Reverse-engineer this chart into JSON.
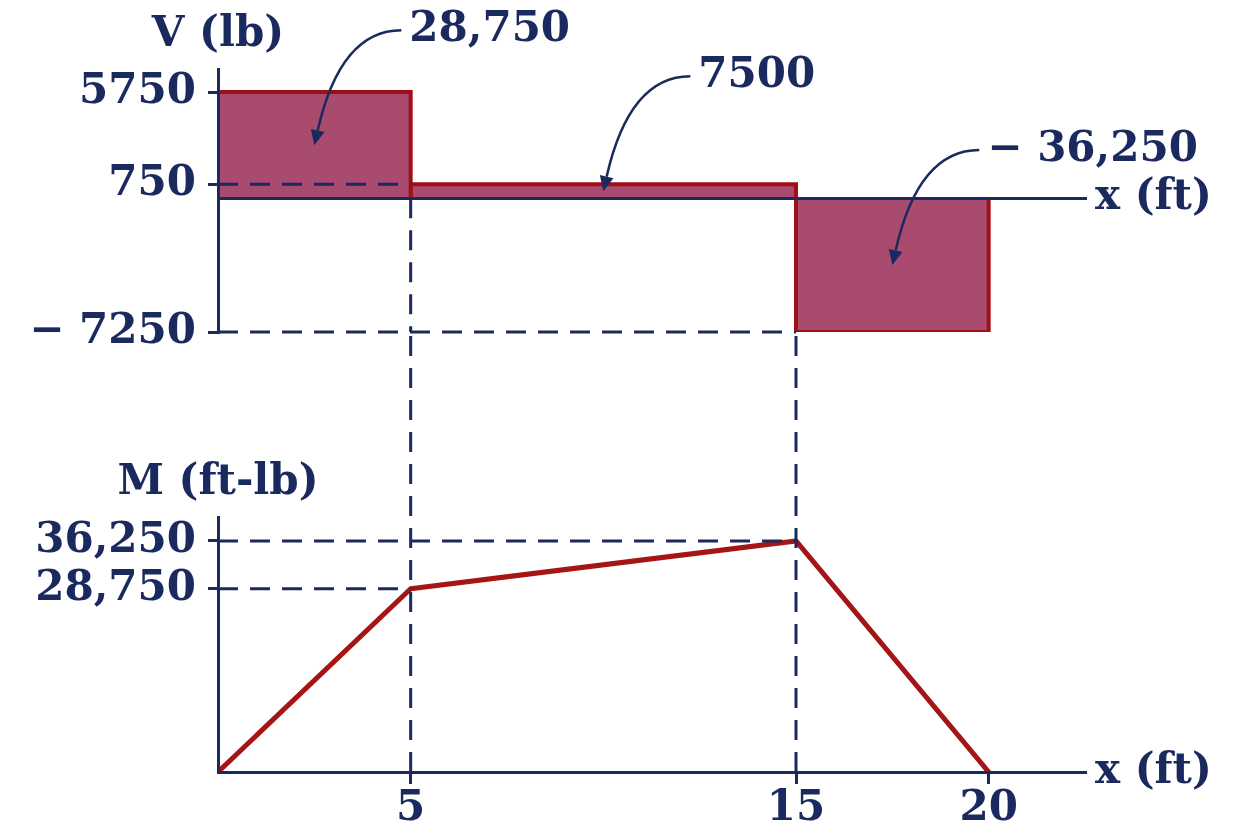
{
  "chart_data": [
    {
      "type": "histogram",
      "xlabel": "x (ft)",
      "ylabel": "V (lb)",
      "bins": [
        0,
        5,
        15,
        20
      ],
      "values": [
        5750,
        750,
        -7250
      ],
      "color": "#a94a6f",
      "xlim": [
        0,
        22.5
      ],
      "ylim": [
        -7250,
        7000
      ],
      "yticks": [
        {
          "value": -7250,
          "label": "− 7250"
        },
        750,
        5750
      ],
      "tick_labels": "y",
      "ref_lines": [
        {
          "axis": "y",
          "value": 750,
          "color": "#1b2a5e",
          "line_style": "dashed"
        },
        {
          "axis": "y",
          "value": -7250,
          "color": "#1b2a5e",
          "line_style": "dashed"
        },
        {
          "axis": "x",
          "value": 5,
          "color": "#1b2a5e",
          "line_style": "dashed"
        }
      ],
      "annotations": [
        "28,750",
        "7500",
        "− 36,250"
      ]
    },
    {
      "type": "line",
      "xlabel": "x (ft)",
      "ylabel": "M (ft-lb)",
      "x": [
        0,
        5,
        15,
        20
      ],
      "values": [
        0,
        28750,
        36250,
        0
      ],
      "color": "#a51515",
      "xlim": [
        0,
        22.5
      ],
      "xticks": [
        5,
        15,
        20
      ],
      "ylim": [
        0,
        40000
      ],
      "yticks": [
        {
          "value": 28750,
          "label": "28,750"
        },
        {
          "value": 36250,
          "label": "36,250"
        }
      ],
      "ref_lines": [
        {
          "axis": "y",
          "value": 28750,
          "color": "#1b2a5e",
          "line_style": "dashed"
        },
        {
          "axis": "y",
          "value": 36250,
          "color": "#1b2a5e",
          "line_style": "dashed"
        },
        {
          "axis": "x",
          "value": 5,
          "color": "#1b2a5e",
          "line_style": "dashed"
        },
        {
          "axis": "x",
          "value": 15,
          "color": "#1b2a5e",
          "line_style": "dashed"
        }
      ]
    }
  ]
}
